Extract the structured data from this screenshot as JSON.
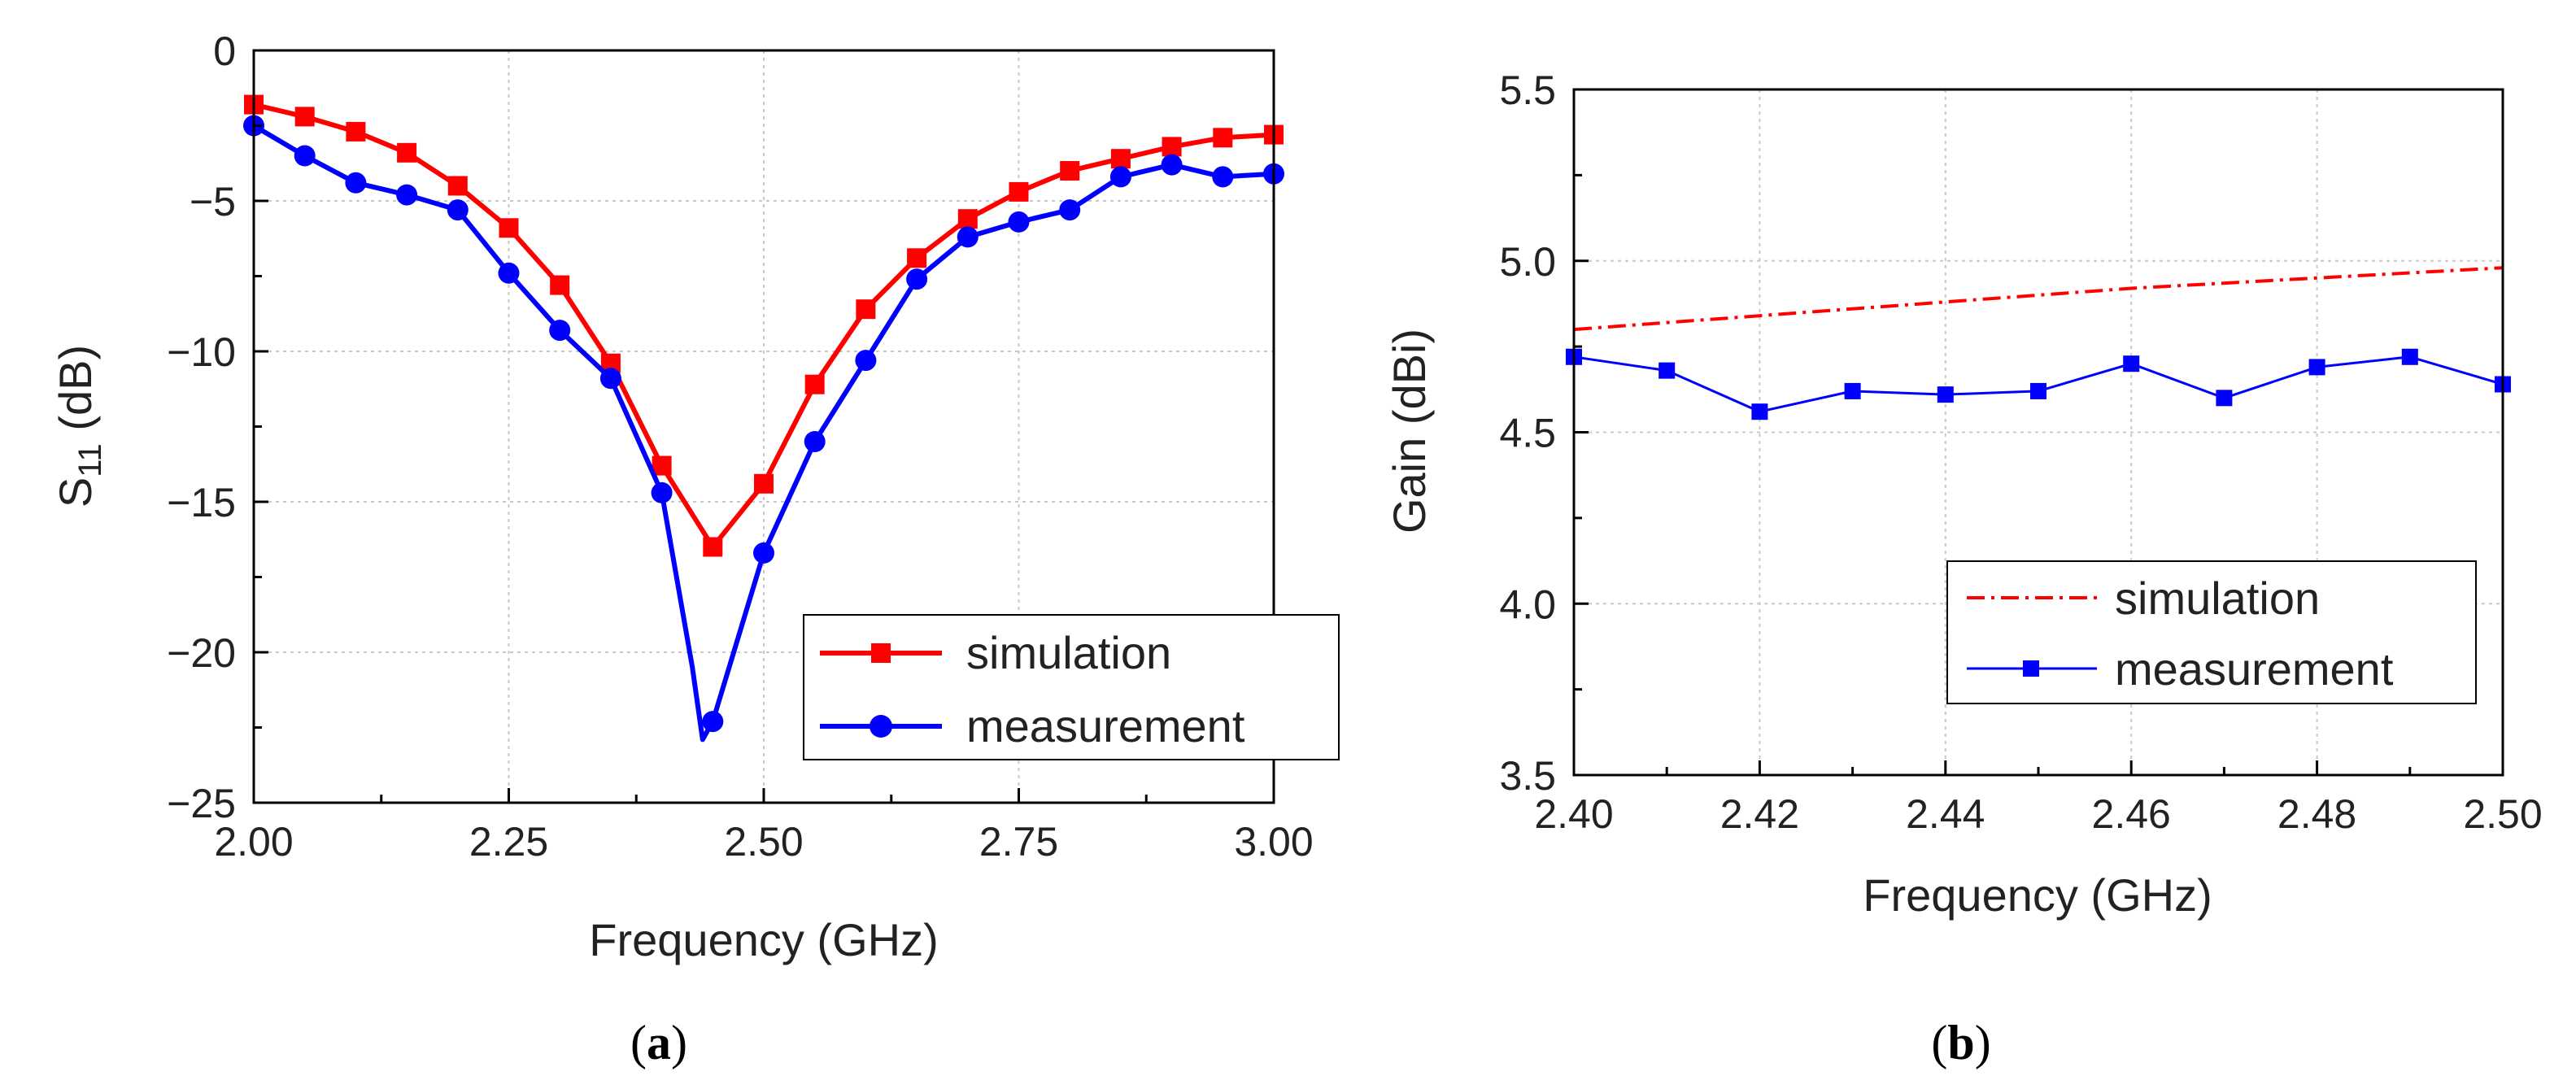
{
  "chart_data": [
    {
      "type": "line",
      "caption": "(a)",
      "xlabel": "Frequency (GHz)",
      "ylabel_main": "S",
      "ylabel_sub": "11",
      "ylabel_unit": " (dB)",
      "xlim": [
        2.0,
        3.0
      ],
      "ylim": [
        -25,
        0
      ],
      "xticks": [
        2.0,
        2.25,
        2.5,
        2.75,
        3.0
      ],
      "xtick_labels": [
        "2.00",
        "2.25",
        "2.50",
        "2.75",
        "3.00"
      ],
      "yticks": [
        0,
        -5,
        -10,
        -15,
        -20,
        -25
      ],
      "ytick_labels": [
        "0",
        "−5",
        "−10",
        "−15",
        "−20",
        "−25"
      ],
      "grid": true,
      "legend_position": "bottom-right",
      "series": [
        {
          "name": "simulation",
          "color": "#ff0000",
          "marker": "square",
          "line": "solid",
          "x": [
            2.0,
            2.05,
            2.1,
            2.15,
            2.2,
            2.25,
            2.3,
            2.35,
            2.4,
            2.45,
            2.5,
            2.55,
            2.6,
            2.65,
            2.7,
            2.75,
            2.8,
            2.85,
            2.9,
            2.95,
            3.0
          ],
          "y": [
            -1.8,
            -2.2,
            -2.7,
            -3.4,
            -4.5,
            -5.9,
            -7.8,
            -10.4,
            -13.8,
            -16.5,
            -14.4,
            -11.1,
            -8.6,
            -6.9,
            -5.6,
            -4.7,
            -4.0,
            -3.6,
            -3.2,
            -2.9,
            -2.8
          ]
        },
        {
          "name": "measurement",
          "color": "#0000ff",
          "marker": "circle",
          "line": "solid",
          "x": [
            2.0,
            2.05,
            2.1,
            2.15,
            2.2,
            2.25,
            2.3,
            2.35,
            2.4,
            2.43,
            2.44,
            2.45,
            2.5,
            2.55,
            2.6,
            2.65,
            2.7,
            2.75,
            2.8,
            2.85,
            2.9,
            2.95,
            3.0
          ],
          "y": [
            -2.5,
            -3.5,
            -4.4,
            -4.8,
            -5.3,
            -7.4,
            -9.3,
            -10.9,
            -14.7,
            -20.5,
            -22.9,
            -22.3,
            -16.7,
            -13.0,
            -10.3,
            -7.6,
            -6.2,
            -5.7,
            -5.3,
            -4.2,
            -3.8,
            -4.2,
            -4.1
          ],
          "marker_x": [
            2.0,
            2.05,
            2.1,
            2.15,
            2.2,
            2.25,
            2.3,
            2.35,
            2.4,
            2.45,
            2.5,
            2.55,
            2.6,
            2.65,
            2.7,
            2.75,
            2.8,
            2.85,
            2.9,
            2.95,
            3.0
          ]
        }
      ]
    },
    {
      "type": "line",
      "caption": "(b)",
      "xlabel": "Frequency (GHz)",
      "ylabel": "Gain (dBi)",
      "xlim": [
        2.4,
        2.5
      ],
      "ylim": [
        3.5,
        5.5
      ],
      "xticks": [
        2.4,
        2.42,
        2.44,
        2.46,
        2.48,
        2.5
      ],
      "xtick_labels": [
        "2.40",
        "2.42",
        "2.44",
        "2.46",
        "2.48",
        "2.50"
      ],
      "yticks": [
        3.5,
        4.0,
        4.5,
        5.0,
        5.5
      ],
      "ytick_labels": [
        "3.5",
        "4.0",
        "4.5",
        "5.0",
        "5.5"
      ],
      "grid": true,
      "legend_position": "center-right",
      "series": [
        {
          "name": "simulation",
          "color": "#ff0000",
          "marker": "none",
          "line": "dash-dot",
          "x": [
            2.4,
            2.42,
            2.44,
            2.46,
            2.48,
            2.5
          ],
          "y": [
            4.8,
            4.84,
            4.88,
            4.92,
            4.95,
            4.98
          ]
        },
        {
          "name": "measurement",
          "color": "#0000ff",
          "marker": "square",
          "line": "solid",
          "x": [
            2.4,
            2.41,
            2.42,
            2.43,
            2.44,
            2.45,
            2.46,
            2.47,
            2.48,
            2.49,
            2.5
          ],
          "y": [
            4.72,
            4.68,
            4.56,
            4.62,
            4.61,
            4.62,
            4.7,
            4.6,
            4.69,
            4.72,
            4.64
          ]
        }
      ]
    }
  ]
}
